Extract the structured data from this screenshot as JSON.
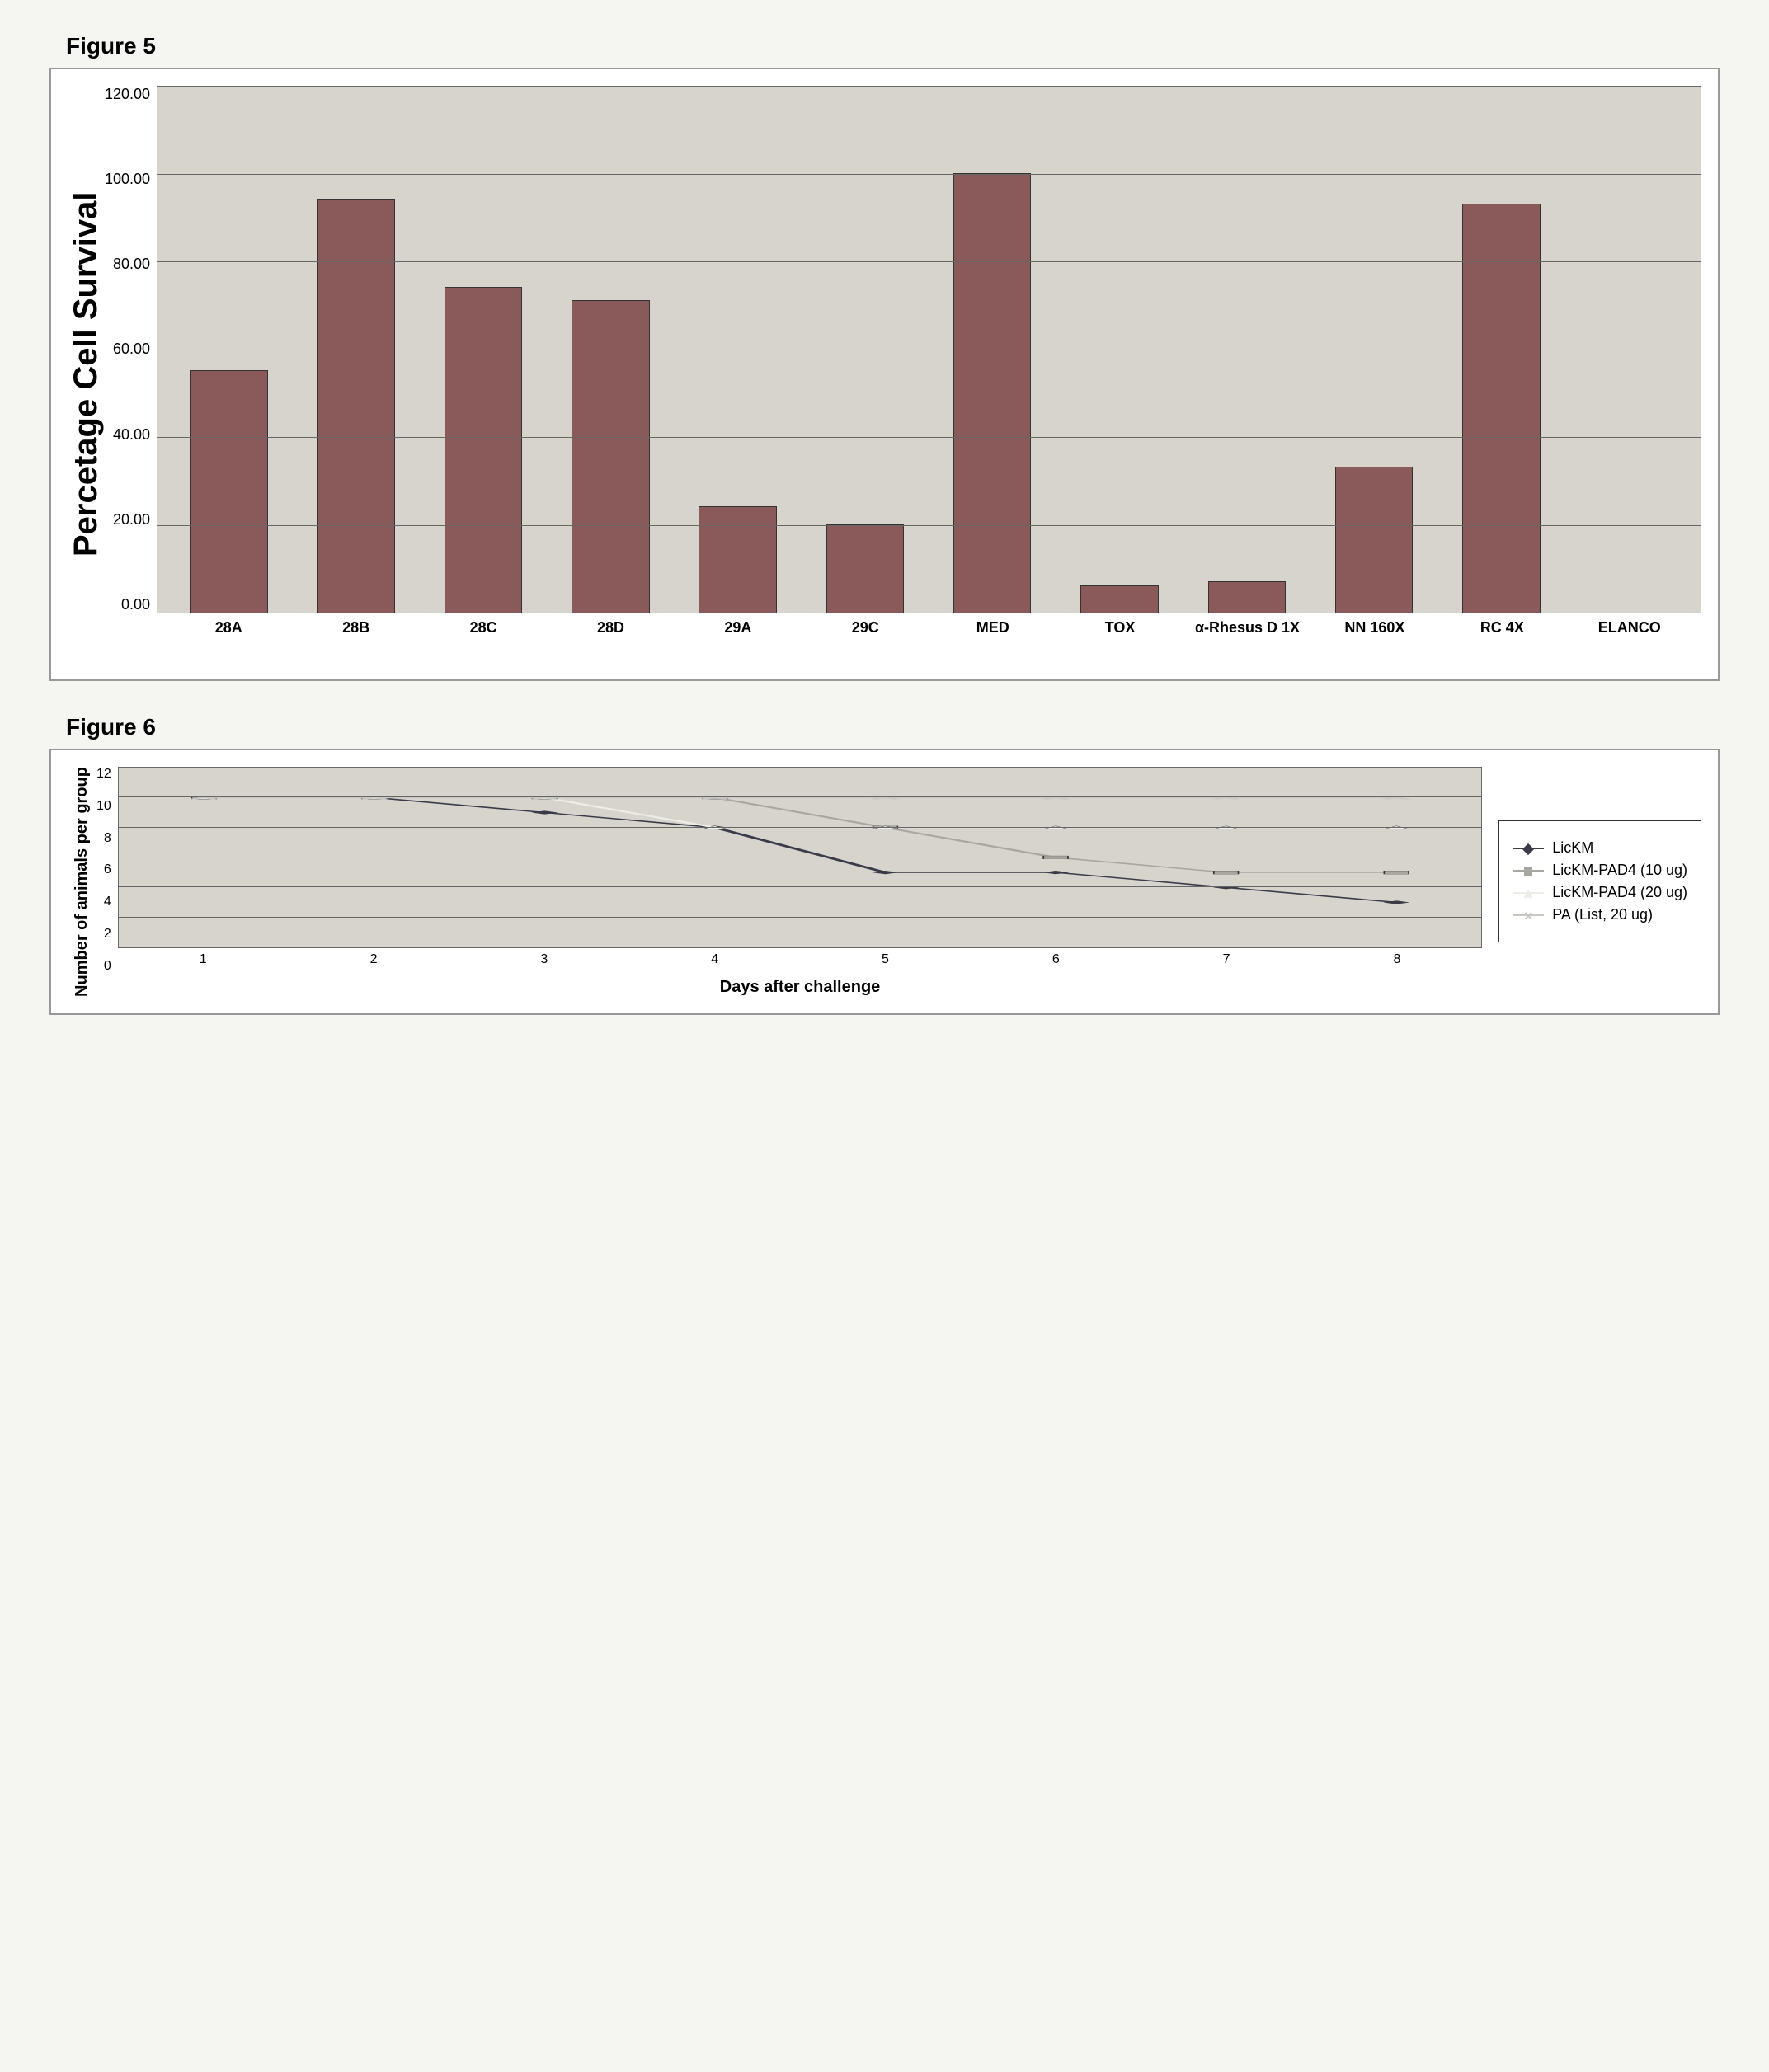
{
  "figure5": {
    "label": "Figure 5",
    "type": "bar",
    "y_title": "Percetage Cell Survival",
    "categories": [
      "28A",
      "28B",
      "28C",
      "28D",
      "29A",
      "29C",
      "MED",
      "TOX",
      "α-Rhesus D 1X",
      "NN 160X",
      "RC 4X",
      "ELANCO"
    ],
    "values": [
      55,
      94,
      74,
      71,
      24,
      20,
      100,
      6,
      7,
      33,
      93,
      0
    ],
    "bar_color": "#8a5a5a",
    "bar_border": "#333333",
    "ylim": [
      0,
      120
    ],
    "yticks": [
      0,
      20,
      40,
      60,
      80,
      100,
      120
    ],
    "ytick_labels": [
      "0.00",
      "20.00",
      "40.00",
      "60.00",
      "80.00",
      "100.00",
      "120.00"
    ],
    "background_color": "#d6d4cc",
    "grid_color": "#666666",
    "label_fontsize": 18,
    "ytitle_fontsize": 40,
    "bar_width": 0.6
  },
  "figure6": {
    "label": "Figure 6",
    "type": "line",
    "x_title": "Days after challenge",
    "y_title": "Number of animals per group",
    "x_categories": [
      1,
      2,
      3,
      4,
      5,
      6,
      7,
      8
    ],
    "ylim": [
      0,
      12
    ],
    "yticks": [
      0,
      2,
      4,
      6,
      8,
      10,
      12
    ],
    "background_color": "#d6d4cc",
    "grid_color": "#666666",
    "label_fontsize": 16,
    "title_fontsize": 20,
    "line_width": 2,
    "marker_size": 9,
    "series": [
      {
        "name": "LicKM",
        "color": "#3a3a4a",
        "marker": "diamond",
        "values": [
          10,
          10,
          9,
          8,
          5,
          5,
          4,
          3
        ]
      },
      {
        "name": "LicKM-PAD4 (10 ug)",
        "color": "#a8a6a0",
        "marker": "square",
        "values": [
          10,
          10,
          10,
          10,
          8,
          6,
          5,
          5
        ]
      },
      {
        "name": "LicKM-PAD4 (20 ug)",
        "color": "#eeeee8",
        "marker": "triangle",
        "values": [
          10,
          10,
          10,
          8,
          8,
          8,
          8,
          8
        ]
      },
      {
        "name": "PA (List, 20 ug)",
        "color": "#c9c7c1",
        "marker": "x",
        "values": [
          10,
          10,
          10,
          10,
          10,
          10,
          10,
          10
        ]
      }
    ]
  }
}
